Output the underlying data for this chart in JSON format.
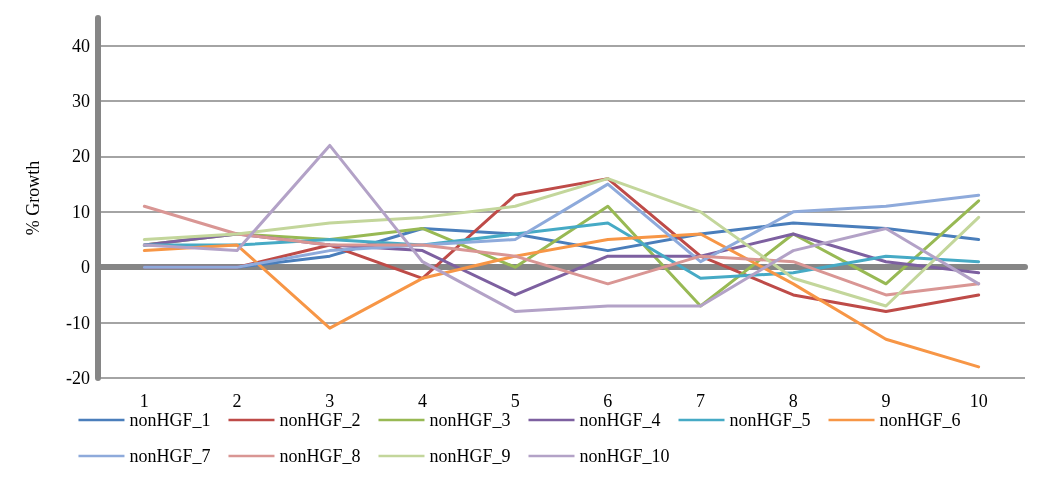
{
  "chart_data": {
    "type": "line",
    "ylabel": "% Growth",
    "categories": [
      "1",
      "2",
      "3",
      "4",
      "5",
      "6",
      "7",
      "8",
      "9",
      "10"
    ],
    "ylim": [
      -20,
      45
    ],
    "yticks": [
      -20,
      -10,
      0,
      10,
      20,
      30,
      40
    ],
    "grid": "y",
    "legend": "bottom",
    "marker": "none",
    "line_style": "solid",
    "series": [
      {
        "name": "nonHGF_1",
        "color": "#4a7ebb",
        "values": [
          0,
          0,
          2,
          7,
          6,
          3,
          6,
          8,
          7,
          5
        ]
      },
      {
        "name": "nonHGF_2",
        "color": "#be4b48",
        "values": [
          0,
          0,
          4,
          -2,
          13,
          16,
          2,
          -5,
          -8,
          -5
        ]
      },
      {
        "name": "nonHGF_3",
        "color": "#98b954",
        "values": [
          4,
          6,
          5,
          7,
          0,
          11,
          -7,
          6,
          -3,
          12
        ]
      },
      {
        "name": "nonHGF_4",
        "color": "#7d60a0",
        "values": [
          4,
          6,
          4,
          3,
          -5,
          2,
          2,
          6,
          1,
          -1
        ]
      },
      {
        "name": "nonHGF_5",
        "color": "#46aac5",
        "values": [
          4,
          4,
          5,
          4,
          6,
          8,
          -2,
          -1,
          2,
          1
        ]
      },
      {
        "name": "nonHGF_6",
        "color": "#f79646",
        "values": [
          3,
          4,
          -11,
          -2,
          2,
          5,
          6,
          -3,
          -13,
          -18
        ]
      },
      {
        "name": "nonHGF_7",
        "color": "#8eaadb",
        "values": [
          0,
          0,
          3,
          4,
          5,
          15,
          1,
          10,
          11,
          13
        ]
      },
      {
        "name": "nonHGF_8",
        "color": "#d99694",
        "values": [
          11,
          6,
          4,
          4,
          2,
          -3,
          2,
          1,
          -5,
          -3
        ]
      },
      {
        "name": "nonHGF_9",
        "color": "#c3d69b",
        "values": [
          5,
          6,
          8,
          9,
          11,
          16,
          10,
          -2,
          -7,
          9
        ]
      },
      {
        "name": "nonHGF_10",
        "color": "#b3a2c7",
        "values": [
          4,
          3,
          22,
          1,
          -8,
          -7,
          -7,
          3,
          7,
          -3
        ]
      }
    ]
  }
}
